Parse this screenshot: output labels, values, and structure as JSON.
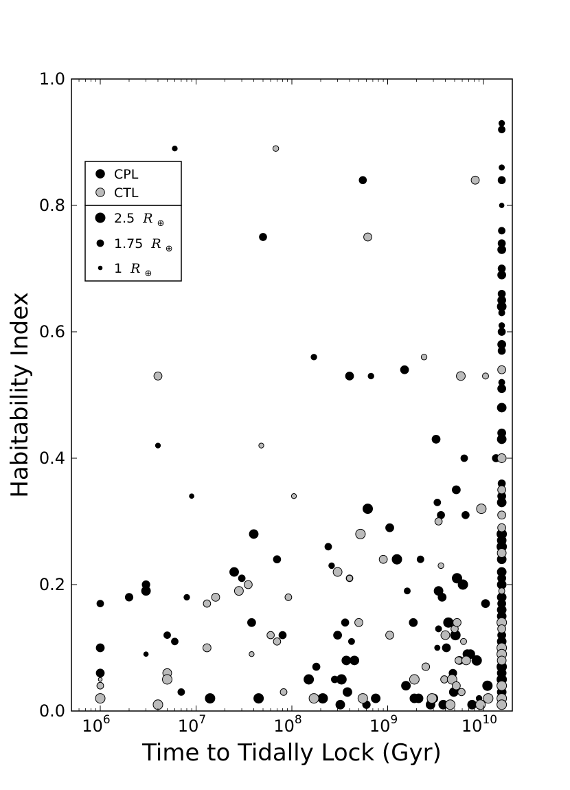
{
  "chart_data": {
    "type": "scatter",
    "xlabel": "Time to Tidally Lock (Gyr)",
    "ylabel": "Habitability Index",
    "xscale": "log",
    "xlim": [
      500000,
      20000000000
    ],
    "ylim": [
      0.0,
      1.0
    ],
    "x_ticks": [
      {
        "value": 1000000,
        "base": "10",
        "exp": "6"
      },
      {
        "value": 10000000,
        "base": "10",
        "exp": "7"
      },
      {
        "value": 100000000,
        "base": "10",
        "exp": "8"
      },
      {
        "value": 1000000000,
        "base": "10",
        "exp": "9"
      },
      {
        "value": 10000000000,
        "base": "10",
        "exp": "10"
      }
    ],
    "y_ticks": [
      "0.0",
      "0.2",
      "0.4",
      "0.6",
      "0.8",
      "1.0"
    ],
    "grid": false,
    "legend": {
      "placement": "top-left",
      "models": [
        {
          "label": "CPL",
          "color": "#000000"
        },
        {
          "label": "CTL",
          "color": "#bbbbbb"
        }
      ],
      "sizes": [
        {
          "label": "2.5",
          "radius": 2.5
        },
        {
          "label": "1.75",
          "radius": 1.75
        },
        {
          "label": "1",
          "radius": 1
        }
      ],
      "size_unit": "R",
      "size_unit_sub": "⊕"
    },
    "series": [
      {
        "name": "CPL",
        "color": "#000000",
        "points": [
          [
            1000000,
            0.17,
            1.75
          ],
          [
            1000000,
            0.1,
            2.1
          ],
          [
            1000000,
            0.06,
            2.1
          ],
          [
            2000000,
            0.18,
            2.0
          ],
          [
            3000000,
            0.2,
            2.0
          ],
          [
            3000000,
            0.19,
            2.3
          ],
          [
            3000000,
            0.09,
            1.2
          ],
          [
            4000000,
            0.42,
            1.3
          ],
          [
            5000000,
            0.12,
            1.75
          ],
          [
            6000000,
            0.11,
            1.75
          ],
          [
            6000000,
            0.89,
            1.3
          ],
          [
            7000000,
            0.03,
            1.75
          ],
          [
            8000000,
            0.18,
            1.5
          ],
          [
            9000000,
            0.34,
            1.2
          ],
          [
            14000000,
            0.02,
            2.5
          ],
          [
            25000000,
            0.22,
            2.3
          ],
          [
            30000000,
            0.21,
            1.75
          ],
          [
            38000000,
            0.14,
            2.1
          ],
          [
            40000000,
            0.28,
            2.3
          ],
          [
            45000000,
            0.02,
            2.5
          ],
          [
            50000000,
            0.75,
            1.9
          ],
          [
            70000000,
            0.24,
            1.9
          ],
          [
            80000000,
            0.12,
            1.9
          ],
          [
            150000000,
            0.05,
            2.5
          ],
          [
            170000000,
            0.56,
            1.5
          ],
          [
            180000000,
            0.07,
            1.9
          ],
          [
            210000000,
            0.02,
            2.5
          ],
          [
            240000000,
            0.26,
            1.75
          ],
          [
            260000000,
            0.23,
            1.5
          ],
          [
            280000000,
            0.05,
            1.75
          ],
          [
            300000000,
            0.12,
            2.1
          ],
          [
            320000000,
            0.01,
            2.3
          ],
          [
            330000000,
            0.05,
            2.5
          ],
          [
            360000000,
            0.14,
            1.9
          ],
          [
            370000000,
            0.08,
            2.3
          ],
          [
            380000000,
            0.03,
            2.3
          ],
          [
            400000000,
            0.53,
            2.1
          ],
          [
            400000000,
            0.21,
            1.75
          ],
          [
            420000000,
            0.11,
            1.6
          ],
          [
            450000000,
            0.08,
            2.3
          ],
          [
            550000000,
            0.84,
            1.9
          ],
          [
            600000000,
            0.01,
            2.0
          ],
          [
            620000000,
            0.32,
            2.5
          ],
          [
            670000000,
            0.53,
            1.5
          ],
          [
            750000000,
            0.02,
            2.3
          ],
          [
            1050000000,
            0.29,
            2.1
          ],
          [
            1250000000,
            0.24,
            2.5
          ],
          [
            1500000000,
            0.54,
            2.1
          ],
          [
            1550000000,
            0.04,
            2.3
          ],
          [
            1600000000,
            0.19,
            1.6
          ],
          [
            1850000000,
            0.14,
            2.1
          ],
          [
            1900000000,
            0.02,
            2.3
          ],
          [
            2100000000,
            0.02,
            2.3
          ],
          [
            2200000000,
            0.24,
            1.75
          ],
          [
            2800000000,
            0.01,
            2.3
          ],
          [
            3000000000,
            0.02,
            2.3
          ],
          [
            3200000000,
            0.43,
            2.1
          ],
          [
            3300000000,
            0.33,
            1.75
          ],
          [
            3300000000,
            0.1,
            1.4
          ],
          [
            3400000000,
            0.19,
            2.3
          ],
          [
            3400000000,
            0.13,
            1.6
          ],
          [
            3600000000,
            0.31,
            1.9
          ],
          [
            3700000000,
            0.18,
            2.1
          ],
          [
            3800000000,
            0.01,
            2.3
          ],
          [
            4100000000,
            0.1,
            2.1
          ],
          [
            4300000000,
            0.14,
            2.5
          ],
          [
            4800000000,
            0.06,
            2.0
          ],
          [
            4900000000,
            0.03,
            2.3
          ],
          [
            5100000000,
            0.12,
            2.5
          ],
          [
            5200000000,
            0.35,
            2.1
          ],
          [
            5300000000,
            0.21,
            2.5
          ],
          [
            5600000000,
            0.08,
            2.1
          ],
          [
            6100000000,
            0.2,
            2.5
          ],
          [
            6300000000,
            0.4,
            1.75
          ],
          [
            6500000000,
            0.31,
            1.9
          ],
          [
            6800000000,
            0.09,
            2.3
          ],
          [
            7300000000,
            0.09,
            2.3
          ],
          [
            7600000000,
            0.01,
            2.3
          ],
          [
            8500000000,
            0.08,
            2.5
          ],
          [
            9000000000,
            0.02,
            1.5
          ],
          [
            10500000000,
            0.17,
            2.1
          ],
          [
            11000000000,
            0.04,
            2.5
          ],
          [
            13500000000,
            0.4,
            1.9
          ],
          [
            15500000000,
            0.93,
            1.5
          ],
          [
            15500000000,
            0.92,
            1.75
          ],
          [
            15500000000,
            0.86,
            1.4
          ],
          [
            15500000000,
            0.84,
            1.9
          ],
          [
            15500000000,
            0.8,
            1.2
          ],
          [
            15500000000,
            0.76,
            1.75
          ],
          [
            15500000000,
            0.74,
            1.9
          ],
          [
            15500000000,
            0.73,
            2.1
          ],
          [
            15500000000,
            0.7,
            1.9
          ],
          [
            15500000000,
            0.69,
            2.1
          ],
          [
            15500000000,
            0.66,
            1.9
          ],
          [
            15500000000,
            0.65,
            2.1
          ],
          [
            15500000000,
            0.64,
            2.3
          ],
          [
            15500000000,
            0.63,
            1.6
          ],
          [
            15500000000,
            0.61,
            1.5
          ],
          [
            15500000000,
            0.6,
            1.9
          ],
          [
            15500000000,
            0.58,
            2.1
          ],
          [
            15500000000,
            0.57,
            1.9
          ],
          [
            15500000000,
            0.52,
            1.6
          ],
          [
            15500000000,
            0.51,
            2.1
          ],
          [
            15500000000,
            0.48,
            2.3
          ],
          [
            15500000000,
            0.44,
            2.1
          ],
          [
            15500000000,
            0.43,
            2.3
          ],
          [
            15500000000,
            0.36,
            1.9
          ],
          [
            15500000000,
            0.34,
            2.1
          ],
          [
            15500000000,
            0.33,
            2.3
          ],
          [
            15500000000,
            0.28,
            2.5
          ],
          [
            15500000000,
            0.27,
            2.3
          ],
          [
            15500000000,
            0.26,
            2.5
          ],
          [
            15500000000,
            0.24,
            2.3
          ],
          [
            15500000000,
            0.22,
            2.3
          ],
          [
            15500000000,
            0.21,
            2.1
          ],
          [
            15500000000,
            0.2,
            2.3
          ],
          [
            15500000000,
            0.18,
            2.3
          ],
          [
            15500000000,
            0.17,
            2.1
          ],
          [
            15500000000,
            0.16,
            2.3
          ],
          [
            15500000000,
            0.15,
            2.3
          ],
          [
            15500000000,
            0.12,
            2.1
          ],
          [
            15500000000,
            0.11,
            2.3
          ],
          [
            15500000000,
            0.07,
            2.5
          ],
          [
            15500000000,
            0.06,
            2.3
          ],
          [
            15500000000,
            0.05,
            2.5
          ],
          [
            15500000000,
            0.03,
            2.3
          ]
        ]
      },
      {
        "name": "CTL",
        "color": "#bbbbbb",
        "points": [
          [
            1000000,
            0.05,
            1.0
          ],
          [
            1000000,
            0.04,
            1.75
          ],
          [
            1000000,
            0.02,
            2.5
          ],
          [
            4000000,
            0.53,
            2.1
          ],
          [
            4000000,
            0.01,
            2.5
          ],
          [
            5000000,
            0.06,
            2.3
          ],
          [
            5000000,
            0.05,
            2.5
          ],
          [
            13000000,
            0.17,
            1.9
          ],
          [
            13000000,
            0.1,
            2.1
          ],
          [
            16000000,
            0.18,
            2.1
          ],
          [
            28000000,
            0.19,
            2.3
          ],
          [
            35000000,
            0.2,
            2.1
          ],
          [
            38000000,
            0.09,
            1.3
          ],
          [
            48000000,
            0.42,
            1.3
          ],
          [
            60000000,
            0.12,
            1.9
          ],
          [
            68000000,
            0.89,
            1.5
          ],
          [
            70000000,
            0.11,
            1.9
          ],
          [
            82000000,
            0.03,
            1.75
          ],
          [
            92000000,
            0.18,
            1.75
          ],
          [
            105000000,
            0.34,
            1.3
          ],
          [
            170000000,
            0.02,
            2.5
          ],
          [
            300000000,
            0.22,
            2.3
          ],
          [
            400000000,
            0.21,
            1.6
          ],
          [
            500000000,
            0.14,
            2.1
          ],
          [
            520000000,
            0.28,
            2.5
          ],
          [
            550000000,
            0.02,
            2.5
          ],
          [
            620000000,
            0.75,
            2.1
          ],
          [
            900000000,
            0.24,
            2.1
          ],
          [
            1050000000,
            0.12,
            2.1
          ],
          [
            1900000000,
            0.05,
            2.5
          ],
          [
            2400000000,
            0.56,
            1.5
          ],
          [
            2500000000,
            0.07,
            2.0
          ],
          [
            2900000000,
            0.02,
            2.5
          ],
          [
            3400000000,
            0.3,
            1.9
          ],
          [
            3600000000,
            0.23,
            1.5
          ],
          [
            3900000000,
            0.05,
            1.9
          ],
          [
            4000000000,
            0.12,
            2.3
          ],
          [
            4500000000,
            0.01,
            2.5
          ],
          [
            4700000000,
            0.05,
            2.5
          ],
          [
            5000000000,
            0.13,
            1.9
          ],
          [
            5200000000,
            0.04,
            2.1
          ],
          [
            5300000000,
            0.14,
            2.1
          ],
          [
            5500000000,
            0.08,
            1.9
          ],
          [
            5800000000,
            0.53,
            2.3
          ],
          [
            5900000000,
            0.03,
            1.9
          ],
          [
            6200000000,
            0.11,
            1.6
          ],
          [
            6600000000,
            0.08,
            2.3
          ],
          [
            8200000000,
            0.84,
            2.1
          ],
          [
            9300000000,
            0.01,
            2.5
          ],
          [
            9500000000,
            0.32,
            2.5
          ],
          [
            10500000000,
            0.53,
            1.6
          ],
          [
            11200000000,
            0.02,
            2.5
          ],
          [
            15500000000,
            0.54,
            2.1
          ],
          [
            15500000000,
            0.4,
            2.3
          ],
          [
            15500000000,
            0.35,
            2.1
          ],
          [
            15500000000,
            0.31,
            2.1
          ],
          [
            15500000000,
            0.29,
            2.1
          ],
          [
            15500000000,
            0.25,
            2.3
          ],
          [
            15500000000,
            0.19,
            1.6
          ],
          [
            15500000000,
            0.14,
            2.5
          ],
          [
            15500000000,
            0.13,
            2.1
          ],
          [
            15500000000,
            0.1,
            2.5
          ],
          [
            15500000000,
            0.09,
            2.5
          ],
          [
            15500000000,
            0.08,
            2.3
          ],
          [
            15500000000,
            0.04,
            2.5
          ],
          [
            15500000000,
            0.02,
            2.5
          ],
          [
            15500000000,
            0.01,
            2.5
          ]
        ]
      }
    ]
  }
}
